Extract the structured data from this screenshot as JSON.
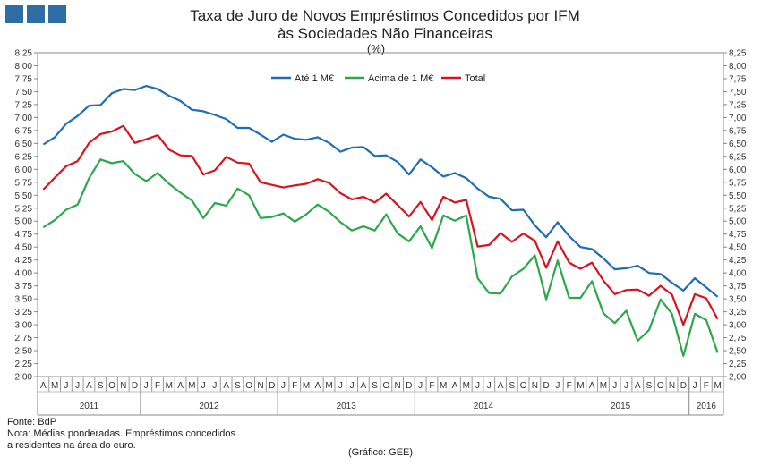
{
  "colors": {
    "logo": "#2e6da4",
    "series_1": "#1f6db3",
    "series_2": "#2aa84a",
    "series_3": "#d9131d"
  },
  "header": {
    "title_line1": "Taxa de Juro de Novos Empréstimos Concedidos por IFM",
    "title_line2": "às Sociedades Não Financeiras",
    "unit": "(%)"
  },
  "footer": {
    "source": "Fonte: BdP",
    "note_line1": "Nota: Médias ponderadas. Empréstimos concedidos",
    "note_line2": "a residentes na área do euro.",
    "credit": "(Gráfico: GEE)"
  },
  "chart_data": {
    "type": "line",
    "title": "Taxa de Juro de Novos Empréstimos Concedidos por IFM às Sociedades Não Financeiras",
    "ylabel": "(%)",
    "ylim": [
      2.0,
      8.25
    ],
    "yticks": [
      "2,00",
      "2,25",
      "2,50",
      "2,75",
      "3,00",
      "3,25",
      "3,50",
      "3,75",
      "4,00",
      "4,25",
      "4,50",
      "4,75",
      "5,00",
      "5,25",
      "5,50",
      "5,75",
      "6,00",
      "6,25",
      "6,50",
      "6,75",
      "7,00",
      "7,25",
      "7,50",
      "7,75",
      "8,00",
      "8,25"
    ],
    "month_labels": [
      "A",
      "M",
      "J",
      "J",
      "A",
      "S",
      "O",
      "N",
      "D",
      "J",
      "F",
      "M",
      "A",
      "M",
      "J",
      "J",
      "A",
      "S",
      "O",
      "N",
      "D",
      "J",
      "F",
      "M",
      "A",
      "M",
      "J",
      "J",
      "A",
      "S",
      "O",
      "N",
      "D",
      "J",
      "F",
      "M",
      "A",
      "M",
      "J",
      "J",
      "A",
      "S",
      "O",
      "N",
      "D",
      "J",
      "F",
      "M",
      "A",
      "M",
      "J",
      "J",
      "A",
      "S",
      "O",
      "N",
      "D",
      "J",
      "F",
      "M"
    ],
    "years": [
      {
        "label": "2011",
        "start": 0,
        "count": 9
      },
      {
        "label": "2012",
        "start": 9,
        "count": 12
      },
      {
        "label": "2013",
        "start": 21,
        "count": 12
      },
      {
        "label": "2014",
        "start": 33,
        "count": 12
      },
      {
        "label": "2015",
        "start": 45,
        "count": 12
      },
      {
        "label": "2016",
        "start": 57,
        "count": 3
      }
    ],
    "legend_position": "top-center",
    "series": [
      {
        "name": "Até 1 M€",
        "color": "#1f6db3",
        "values": [
          6.48,
          6.62,
          6.88,
          7.03,
          7.23,
          7.24,
          7.47,
          7.55,
          7.53,
          7.61,
          7.55,
          7.42,
          7.32,
          7.15,
          7.12,
          7.05,
          6.97,
          6.8,
          6.8,
          6.67,
          6.53,
          6.67,
          6.59,
          6.57,
          6.62,
          6.51,
          6.34,
          6.42,
          6.43,
          6.26,
          6.27,
          6.14,
          5.9,
          6.19,
          6.04,
          5.86,
          5.93,
          5.83,
          5.63,
          5.47,
          5.43,
          5.21,
          5.22,
          4.92,
          4.69,
          4.98,
          4.71,
          4.5,
          4.46,
          4.28,
          4.07,
          4.09,
          4.14,
          4.0,
          3.98,
          3.81,
          3.66,
          3.9,
          3.72,
          3.54
        ]
      },
      {
        "name": "Acima de 1 M€",
        "color": "#2aa84a",
        "values": [
          4.88,
          5.02,
          5.22,
          5.32,
          5.83,
          6.19,
          6.12,
          6.16,
          5.91,
          5.77,
          5.93,
          5.72,
          5.55,
          5.4,
          5.06,
          5.35,
          5.3,
          5.63,
          5.5,
          5.06,
          5.08,
          5.15,
          4.99,
          5.13,
          5.32,
          5.18,
          4.98,
          4.82,
          4.9,
          4.82,
          5.13,
          4.76,
          4.61,
          4.9,
          4.48,
          5.11,
          5.01,
          5.11,
          3.9,
          3.61,
          3.6,
          3.93,
          4.08,
          4.34,
          3.49,
          4.24,
          3.52,
          3.52,
          3.84,
          3.22,
          3.03,
          3.27,
          2.69,
          2.9,
          3.49,
          3.21,
          2.4,
          3.21,
          3.09,
          2.46
        ]
      },
      {
        "name": "Total",
        "color": "#d9131d",
        "values": [
          5.61,
          5.84,
          6.06,
          6.16,
          6.51,
          6.68,
          6.73,
          6.84,
          6.51,
          6.58,
          6.66,
          6.38,
          6.27,
          6.26,
          5.9,
          5.98,
          6.24,
          6.13,
          6.11,
          5.75,
          5.7,
          5.65,
          5.69,
          5.72,
          5.81,
          5.74,
          5.54,
          5.42,
          5.47,
          5.36,
          5.53,
          5.31,
          5.09,
          5.37,
          5.02,
          5.47,
          5.36,
          5.41,
          4.51,
          4.54,
          4.77,
          4.6,
          4.76,
          4.62,
          4.1,
          4.61,
          4.2,
          4.08,
          4.2,
          3.85,
          3.59,
          3.67,
          3.68,
          3.56,
          3.75,
          3.58,
          3.0,
          3.59,
          3.51,
          3.11
        ]
      }
    ]
  }
}
